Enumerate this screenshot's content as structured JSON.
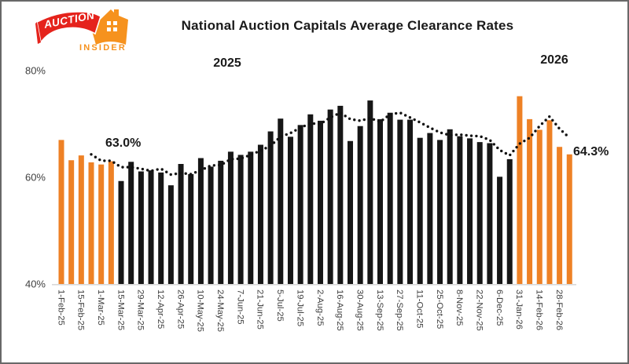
{
  "logo": {
    "auction": "AUCTION",
    "insider": "INSIDER"
  },
  "title": "National Auction Capitals Average Clearance Rates",
  "annotations": {
    "year_2025": "2025",
    "year_2026": "2026",
    "start_label": "63.0%",
    "end_label": "64.3%"
  },
  "colors": {
    "highlight_orange": "#EE8125",
    "bar_black": "#161616",
    "axis_text": "#3F3F3F",
    "baseline": "#D8D8D8",
    "trend_dots": "#111111",
    "logo_red": "#E5231C",
    "logo_orange": "#F6921E",
    "border": "#686868"
  },
  "chart_data": {
    "type": "bar",
    "title": "National Auction Capitals Average Clearance Rates",
    "ylabel": "",
    "xlabel": "",
    "ylim": [
      40,
      80
    ],
    "grid": false,
    "legend": false,
    "yticks": [
      {
        "value": 80,
        "label": "80%"
      },
      {
        "value": 60,
        "label": "60%"
      },
      {
        "value": 40,
        "label": "40%"
      }
    ],
    "series_colors": {
      "highlight": "#EE8125",
      "default": "#161616"
    },
    "bars": [
      {
        "label": "1-Feb-25",
        "value": 67.0,
        "highlight": true
      },
      {
        "label": "",
        "value": 63.2,
        "highlight": true
      },
      {
        "label": "15-Feb-25",
        "value": 64.1,
        "highlight": true
      },
      {
        "label": "",
        "value": 62.8,
        "highlight": true
      },
      {
        "label": "1-Mar-25",
        "value": 62.4,
        "highlight": true
      },
      {
        "label": "",
        "value": 63.0,
        "highlight": true
      },
      {
        "label": "15-Mar-25",
        "value": 59.3,
        "highlight": false
      },
      {
        "label": "",
        "value": 62.9,
        "highlight": false
      },
      {
        "label": "29-Mar-25",
        "value": 61.1,
        "highlight": false
      },
      {
        "label": "",
        "value": 61.3,
        "highlight": false
      },
      {
        "label": "12-Apr-25",
        "value": 60.9,
        "highlight": false
      },
      {
        "label": "",
        "value": 58.5,
        "highlight": false
      },
      {
        "label": "26-Apr-25",
        "value": 62.5,
        "highlight": false
      },
      {
        "label": "",
        "value": 60.6,
        "highlight": false
      },
      {
        "label": "10-May-25",
        "value": 63.6,
        "highlight": false
      },
      {
        "label": "",
        "value": 62.0,
        "highlight": false
      },
      {
        "label": "24-May-25",
        "value": 63.1,
        "highlight": false
      },
      {
        "label": "",
        "value": 64.8,
        "highlight": false
      },
      {
        "label": "7-Jun-25",
        "value": 64.2,
        "highlight": false
      },
      {
        "label": "",
        "value": 64.8,
        "highlight": false
      },
      {
        "label": "21-Jun-25",
        "value": 66.1,
        "highlight": false
      },
      {
        "label": "",
        "value": 68.6,
        "highlight": false
      },
      {
        "label": "5-Jul-25",
        "value": 71.0,
        "highlight": false
      },
      {
        "label": "",
        "value": 67.6,
        "highlight": false
      },
      {
        "label": "19-Jul-25",
        "value": 69.8,
        "highlight": false
      },
      {
        "label": "",
        "value": 71.8,
        "highlight": false
      },
      {
        "label": "2-Aug-25",
        "value": 70.6,
        "highlight": false
      },
      {
        "label": "",
        "value": 72.7,
        "highlight": false
      },
      {
        "label": "16-Aug-25",
        "value": 73.4,
        "highlight": false
      },
      {
        "label": "",
        "value": 66.8,
        "highlight": false
      },
      {
        "label": "30-Aug-25",
        "value": 69.6,
        "highlight": false
      },
      {
        "label": "",
        "value": 74.4,
        "highlight": false
      },
      {
        "label": "13-Sep-25",
        "value": 70.9,
        "highlight": false
      },
      {
        "label": "",
        "value": 72.1,
        "highlight": false
      },
      {
        "label": "27-Sep-25",
        "value": 70.8,
        "highlight": false
      },
      {
        "label": "",
        "value": 70.8,
        "highlight": false
      },
      {
        "label": "11-Oct-25",
        "value": 67.4,
        "highlight": false
      },
      {
        "label": "",
        "value": 68.3,
        "highlight": false
      },
      {
        "label": "25-Oct-25",
        "value": 67.0,
        "highlight": false
      },
      {
        "label": "",
        "value": 69.0,
        "highlight": false
      },
      {
        "label": "8-Nov-25",
        "value": 67.7,
        "highlight": false
      },
      {
        "label": "",
        "value": 67.3,
        "highlight": false
      },
      {
        "label": "22-Nov-25",
        "value": 66.6,
        "highlight": false
      },
      {
        "label": "",
        "value": 66.4,
        "highlight": false
      },
      {
        "label": "6-Dec-25",
        "value": 60.1,
        "highlight": false
      },
      {
        "label": "",
        "value": 63.4,
        "highlight": false
      },
      {
        "label": "31-Jan-26",
        "value": 75.2,
        "highlight": true
      },
      {
        "label": "",
        "value": 70.9,
        "highlight": true
      },
      {
        "label": "14-Feb-26",
        "value": 68.9,
        "highlight": true
      },
      {
        "label": "",
        "value": 70.7,
        "highlight": true
      },
      {
        "label": "28-Feb-26",
        "value": 65.7,
        "highlight": true
      },
      {
        "label": "",
        "value": 64.3,
        "highlight": true
      }
    ],
    "trend": [
      null,
      null,
      null,
      64.3,
      63.1,
      63.1,
      61.9,
      61.9,
      61.6,
      61.2,
      61.6,
      60.5,
      60.8,
      60.6,
      61.3,
      62.2,
      62.3,
      63.4,
      63.5,
      64.2,
      65.0,
      65.9,
      67.6,
      68.3,
      69.3,
      70.1,
      70.0,
      71.2,
      72.1,
      70.9,
      70.6,
      71.1,
      70.4,
      71.8,
      72.1,
      71.2,
      70.3,
      69.3,
      68.4,
      67.9,
      68.0,
      67.8,
      67.7,
      67.0,
      65.1,
      64.1,
      66.3,
      67.4,
      69.6,
      71.4,
      69.1,
      67.4
    ]
  }
}
